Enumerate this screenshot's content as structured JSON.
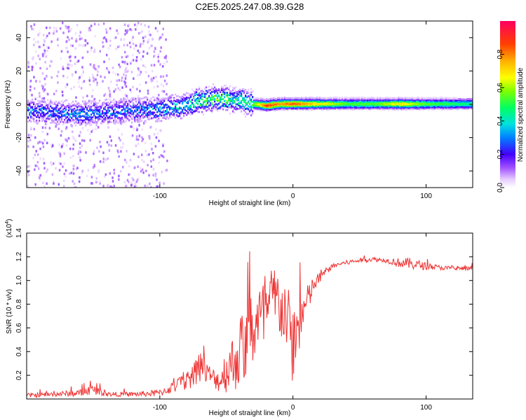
{
  "title": "C2E5.2025.247.08.39.G28",
  "colors": {
    "snr_line": "#ee3333",
    "axis": "#000000",
    "spectrogram_base": "#5b1ee6"
  },
  "chart_data": [
    {
      "type": "heatmap",
      "name": "spectrogram",
      "xlabel": "Height of straight line (km)",
      "ylabel": "Frequency (Hz)",
      "xlim": [
        -200,
        135
      ],
      "ylim": [
        -50,
        50
      ],
      "x_ticks": [
        -100,
        0,
        100
      ],
      "x_tick_labels": [
        "-100",
        "0",
        "100"
      ],
      "y_ticks": [
        -40,
        -20,
        0,
        20,
        40
      ],
      "y_tick_labels": [
        "-40",
        "-20",
        "0",
        "20",
        "40"
      ],
      "colorbar": {
        "label": "Normalized spectral amplitude",
        "range": [
          0,
          1
        ],
        "ticks": [
          0.0,
          0.2,
          0.4,
          0.6,
          0.8
        ],
        "tick_labels": [
          "0.0",
          "0.2",
          "0.4",
          "0.6",
          "0.8"
        ]
      },
      "ridge": {
        "heights": [
          -200,
          -180,
          -160,
          -140,
          -120,
          -100,
          -80,
          -70,
          -60,
          -50,
          -40,
          -30,
          -20,
          -10,
          0,
          20,
          40,
          60,
          80,
          100,
          120,
          135
        ],
        "center_frequency": [
          -4,
          -5,
          -6,
          -5,
          -4,
          -3,
          -1,
          2,
          3,
          3,
          2,
          0,
          -1,
          0,
          0,
          0,
          0,
          0,
          0,
          0,
          0,
          0
        ],
        "amplitude": [
          0.3,
          0.3,
          0.35,
          0.3,
          0.3,
          0.35,
          0.4,
          0.5,
          0.55,
          0.55,
          0.5,
          0.55,
          0.9,
          0.8,
          0.85,
          0.7,
          0.55,
          0.55,
          0.7,
          0.55,
          0.5,
          0.45
        ]
      }
    },
    {
      "type": "line",
      "name": "snr",
      "xlabel": "Height of straight line (km)",
      "ylabel": "SNR (10 * v/v)",
      "y_multiplier": "(x10",
      "y_multiplier_exp": "4",
      "y_multiplier_close": ")",
      "xlim": [
        -200,
        135
      ],
      "ylim": [
        0,
        1.4
      ],
      "x_ticks": [
        -100,
        0,
        100
      ],
      "x_tick_labels": [
        "-100",
        "0",
        "100"
      ],
      "y_ticks": [
        0.2,
        0.4,
        0.6,
        0.8,
        1.0,
        1.2,
        1.4
      ],
      "y_tick_labels": [
        "0.2",
        "0.4",
        "0.6",
        "0.8",
        "1.0",
        "1.2",
        "1.4"
      ],
      "series": [
        {
          "name": "SNR",
          "x": [
            -200,
            -180,
            -160,
            -150,
            -140,
            -120,
            -100,
            -90,
            -80,
            -75,
            -70,
            -65,
            -60,
            -55,
            -50,
            -45,
            -40,
            -35,
            -30,
            -25,
            -20,
            -15,
            -10,
            -5,
            0,
            5,
            10,
            15,
            20,
            25,
            30,
            35,
            40,
            50,
            60,
            70,
            80,
            90,
            100,
            110,
            120,
            135
          ],
          "y": [
            0.03,
            0.04,
            0.05,
            0.08,
            0.04,
            0.04,
            0.05,
            0.1,
            0.15,
            0.2,
            0.3,
            0.22,
            0.18,
            0.15,
            0.25,
            0.3,
            0.4,
            0.45,
            0.6,
            0.65,
            0.7,
            0.85,
            0.8,
            0.7,
            0.45,
            0.65,
            0.8,
            0.95,
            1.02,
            1.08,
            1.12,
            1.14,
            1.15,
            1.17,
            1.18,
            1.17,
            1.15,
            1.14,
            1.12,
            1.11,
            1.1,
            1.1
          ],
          "noise": [
            0.02,
            0.02,
            0.03,
            0.04,
            0.02,
            0.02,
            0.03,
            0.05,
            0.08,
            0.1,
            0.15,
            0.1,
            0.08,
            0.1,
            0.2,
            0.25,
            0.3,
            0.3,
            0.35,
            0.35,
            0.3,
            0.3,
            0.3,
            0.3,
            0.35,
            0.25,
            0.15,
            0.08,
            0.05,
            0.03,
            0.02,
            0.02,
            0.02,
            0.02,
            0.02,
            0.02,
            0.04,
            0.05,
            0.03,
            0.02,
            0.02,
            0.02
          ]
        }
      ]
    }
  ]
}
